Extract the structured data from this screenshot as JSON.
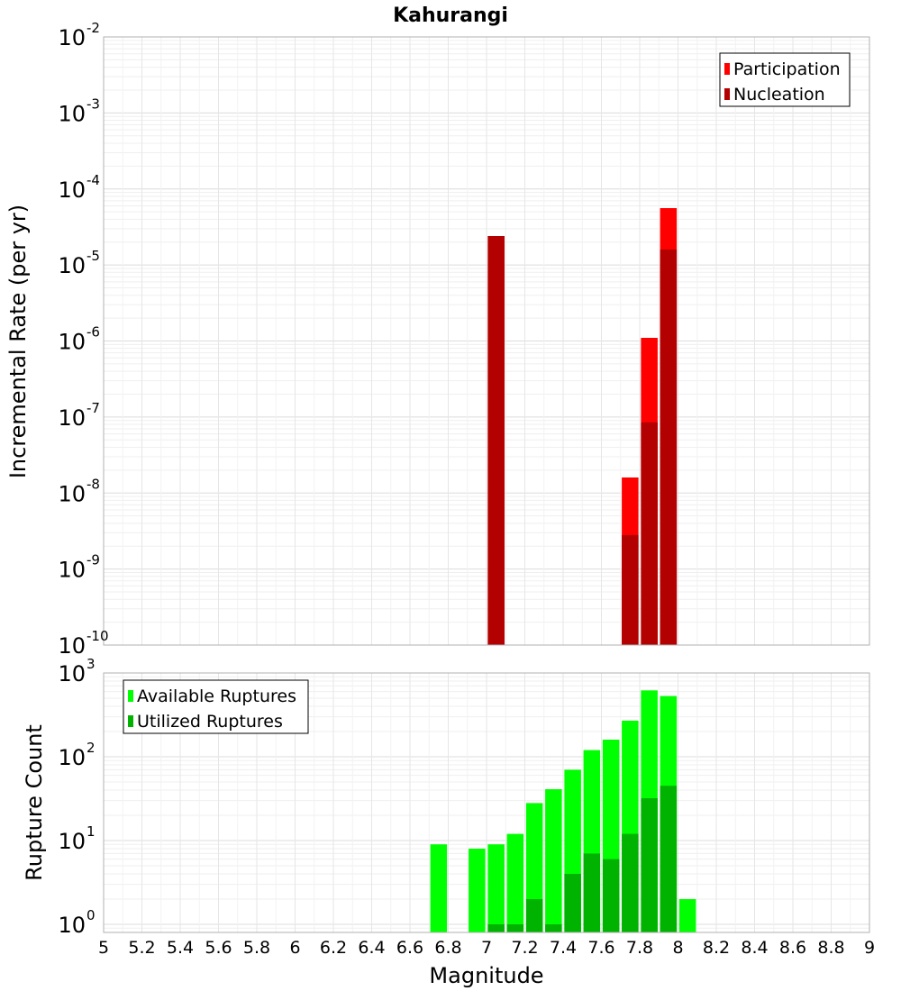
{
  "title": "Kahurangi",
  "xlabel": "Magnitude",
  "x_ticks": [
    "5",
    "5.2",
    "5.4",
    "5.6",
    "5.8",
    "6",
    "6.2",
    "6.4",
    "6.6",
    "6.8",
    "7",
    "7.2",
    "7.4",
    "7.6",
    "7.8",
    "8",
    "8.2",
    "8.4",
    "8.6",
    "8.8",
    "9"
  ],
  "colors": {
    "participation": "#ff0000",
    "nucleation": "#b30000",
    "available": "#00ff00",
    "utilized": "#00b300"
  },
  "chart_data": [
    {
      "type": "bar",
      "title": "Kahurangi",
      "xlabel": "",
      "ylabel": "Incremental Rate (per yr)",
      "yscale": "log",
      "ylim": [
        1e-10,
        0.01
      ],
      "xlim": [
        5,
        9
      ],
      "y_ticks": [
        {
          "base": "10",
          "exp": "-10"
        },
        {
          "base": "10",
          "exp": "-9"
        },
        {
          "base": "10",
          "exp": "-8"
        },
        {
          "base": "10",
          "exp": "-7"
        },
        {
          "base": "10",
          "exp": "-6"
        },
        {
          "base": "10",
          "exp": "-5"
        },
        {
          "base": "10",
          "exp": "-4"
        },
        {
          "base": "10",
          "exp": "-3"
        },
        {
          "base": "10",
          "exp": "-2"
        }
      ],
      "legend_position": "top-right",
      "legend": [
        "Participation",
        "Nucleation"
      ],
      "x": [
        7.05,
        7.75,
        7.85,
        7.95
      ],
      "series": [
        {
          "name": "Participation",
          "values": [
            2.4e-05,
            1.6e-08,
            1.1e-06,
            5.6e-05
          ]
        },
        {
          "name": "Nucleation",
          "values": [
            2.4e-05,
            2.8e-09,
            8.5e-08,
            1.6e-05
          ]
        }
      ],
      "grid": true
    },
    {
      "type": "bar",
      "title": "",
      "xlabel": "Magnitude",
      "ylabel": "Rupture Count",
      "yscale": "log",
      "ylim": [
        0.8,
        1000
      ],
      "xlim": [
        5,
        9
      ],
      "y_ticks": [
        {
          "base": "10",
          "exp": "0"
        },
        {
          "base": "10",
          "exp": "1"
        },
        {
          "base": "10",
          "exp": "2"
        },
        {
          "base": "10",
          "exp": "3"
        }
      ],
      "legend_position": "top-left",
      "legend": [
        "Available Ruptures",
        "Utilized Ruptures"
      ],
      "x": [
        6.75,
        6.95,
        7.05,
        7.15,
        7.25,
        7.35,
        7.45,
        7.55,
        7.65,
        7.75,
        7.85,
        7.95,
        8.05
      ],
      "series": [
        {
          "name": "Available Ruptures",
          "values": [
            9,
            8,
            9,
            12,
            28,
            41,
            70,
            120,
            160,
            270,
            620,
            530,
            2
          ]
        },
        {
          "name": "Utilized Ruptures",
          "values": [
            null,
            null,
            1,
            1,
            2,
            1,
            4,
            7,
            6,
            12,
            32,
            45,
            null
          ]
        }
      ],
      "grid": true
    }
  ]
}
